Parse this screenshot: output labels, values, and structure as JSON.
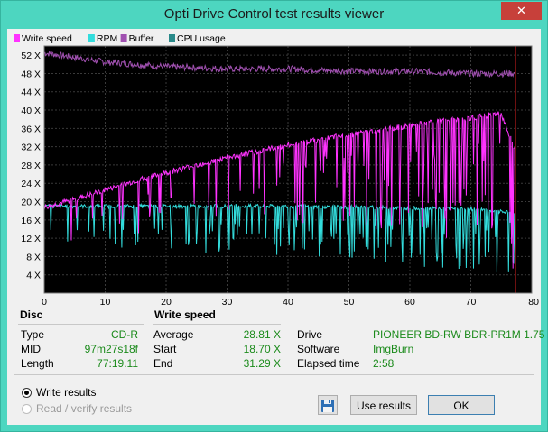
{
  "window": {
    "title": "Opti Drive Control test results viewer",
    "close_glyph": "✕"
  },
  "legend": [
    {
      "label": "Write speed",
      "color": "#ff33ff"
    },
    {
      "label": "RPM",
      "color": "#33dddd"
    },
    {
      "label": "Buffer",
      "color": "#a050b0"
    },
    {
      "label": "CPU usage",
      "color": "#2a8a8a"
    }
  ],
  "chart_data": {
    "type": "line",
    "x_unit": "min",
    "xlim": [
      0,
      80
    ],
    "ylim": [
      0,
      54
    ],
    "x_ticks": [
      "0",
      "10",
      "20",
      "30",
      "40",
      "50",
      "60",
      "70",
      "80 min"
    ],
    "y_ticks": [
      "4 X",
      "8 X",
      "12 X",
      "16 X",
      "20 X",
      "24 X",
      "28 X",
      "32 X",
      "36 X",
      "40 X",
      "44 X",
      "48 X",
      "52 X"
    ],
    "marker_x": 77.3,
    "series": [
      {
        "name": "Write speed",
        "color": "#ff33ff",
        "x": [
          0,
          5,
          10,
          15,
          20,
          25,
          30,
          35,
          40,
          45,
          50,
          55,
          60,
          65,
          70,
          75,
          77.3
        ],
        "y": [
          18.7,
          20.5,
          22.5,
          24.5,
          26.3,
          28,
          29.5,
          31,
          32.3,
          33.5,
          34.6,
          35.6,
          36.6,
          37.5,
          38.3,
          39.2,
          31.3
        ]
      },
      {
        "name": "RPM",
        "color": "#33dddd",
        "x": [
          0,
          10,
          20,
          30,
          40,
          50,
          60,
          70,
          77.3
        ],
        "y": [
          19,
          19,
          19,
          19,
          19,
          18.8,
          18.6,
          18.4,
          17.5
        ]
      },
      {
        "name": "Buffer",
        "color": "#a050b0",
        "x": [
          0,
          10,
          20,
          30,
          40,
          50,
          60,
          70,
          77.3
        ],
        "y": [
          52.5,
          50.5,
          49.5,
          49,
          49,
          48.5,
          48.5,
          48,
          48
        ]
      }
    ]
  },
  "disc": {
    "header": "Disc",
    "rows": [
      {
        "label": "Type",
        "value": "CD-R"
      },
      {
        "label": "MID",
        "value": "97m27s18f"
      },
      {
        "label": "Length",
        "value": "77:19.11"
      }
    ]
  },
  "write_speed": {
    "header": "Write speed",
    "rows": [
      {
        "label": "Average",
        "value": "28.81 X"
      },
      {
        "label": "Start",
        "value": "18.70 X"
      },
      {
        "label": "End",
        "value": "31.29 X"
      }
    ]
  },
  "drive_info": {
    "rows": [
      {
        "label": "Drive",
        "value": "PIONEER  BD-RW BDR-PR1M 1.75"
      },
      {
        "label": "Software",
        "value": "ImgBurn"
      },
      {
        "label": "Elapsed time",
        "value": "2:58"
      }
    ]
  },
  "options": {
    "write_results": "Write results",
    "read_verify_results": "Read / verify results"
  },
  "buttons": {
    "use_results": "Use results",
    "ok": "OK"
  }
}
